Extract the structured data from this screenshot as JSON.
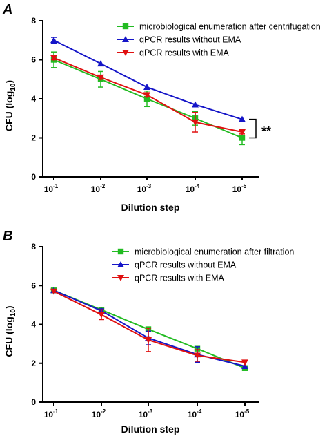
{
  "chart_data": [
    {
      "panel_label": "A",
      "type": "line",
      "xlabel": "Dilution step",
      "ylabel": "CFU (log10)",
      "ylabel_parts": [
        "CFU (log",
        "10",
        ")"
      ],
      "categories": [
        {
          "base": "10",
          "exp": "-1"
        },
        {
          "base": "10",
          "exp": "-2"
        },
        {
          "base": "10",
          "exp": "-3"
        },
        {
          "base": "10",
          "exp": "-4"
        },
        {
          "base": "10",
          "exp": "-5"
        }
      ],
      "ylim": [
        0,
        8
      ],
      "yticks": [
        "0",
        "2",
        "4",
        "6",
        "8"
      ],
      "legend_position": "top-right",
      "series": [
        {
          "name": "microbiological enumeration after centrifugation",
          "color": "#22bb22",
          "marker": "square",
          "values": [
            6.0,
            5.0,
            4.0,
            3.0,
            2.0
          ],
          "errors": [
            0.4,
            0.4,
            0.4,
            0.35,
            0.35
          ]
        },
        {
          "name": "qPCR results without EMA",
          "color": "#1515c8",
          "marker": "triangle-up",
          "values": [
            7.0,
            5.8,
            4.6,
            3.7,
            2.95
          ],
          "errors": [
            0.15,
            0.05,
            0.05,
            0.05,
            0.05
          ]
        },
        {
          "name": "qPCR results with EMA",
          "color": "#e01010",
          "marker": "triangle-down",
          "values": [
            6.1,
            5.1,
            4.2,
            2.8,
            2.3
          ],
          "errors": [
            0.1,
            0.1,
            0.1,
            0.5,
            0.1
          ]
        }
      ],
      "annotation": "**"
    },
    {
      "panel_label": "B",
      "type": "line",
      "xlabel": "Dilution step",
      "ylabel": "CFU (log10)",
      "ylabel_parts": [
        "CFU (log",
        "10",
        ")"
      ],
      "categories": [
        {
          "base": "10",
          "exp": "-1"
        },
        {
          "base": "10",
          "exp": "-2"
        },
        {
          "base": "10",
          "exp": "-3"
        },
        {
          "base": "10",
          "exp": "-4"
        },
        {
          "base": "10",
          "exp": "-5"
        }
      ],
      "ylim": [
        0,
        8
      ],
      "yticks": [
        "0",
        "2",
        "4",
        "6",
        "8"
      ],
      "legend_position": "top-right",
      "series": [
        {
          "name": "microbiological enumeration after filtration",
          "color": "#22bb22",
          "marker": "square",
          "values": [
            5.75,
            4.75,
            3.75,
            2.75,
            1.75
          ],
          "errors": [
            0.05,
            0.05,
            0.05,
            0.05,
            0.05
          ]
        },
        {
          "name": "qPCR results without EMA",
          "color": "#1515c8",
          "marker": "triangle-up",
          "values": [
            5.75,
            4.7,
            3.3,
            2.45,
            1.85
          ],
          "errors": [
            0.05,
            0.1,
            0.35,
            0.4,
            0.05
          ]
        },
        {
          "name": "qPCR results with EMA",
          "color": "#e01010",
          "marker": "triangle-down",
          "values": [
            5.7,
            4.5,
            3.2,
            2.4,
            2.05
          ],
          "errors": [
            0.05,
            0.25,
            0.6,
            0.3,
            0.05
          ]
        }
      ]
    }
  ]
}
